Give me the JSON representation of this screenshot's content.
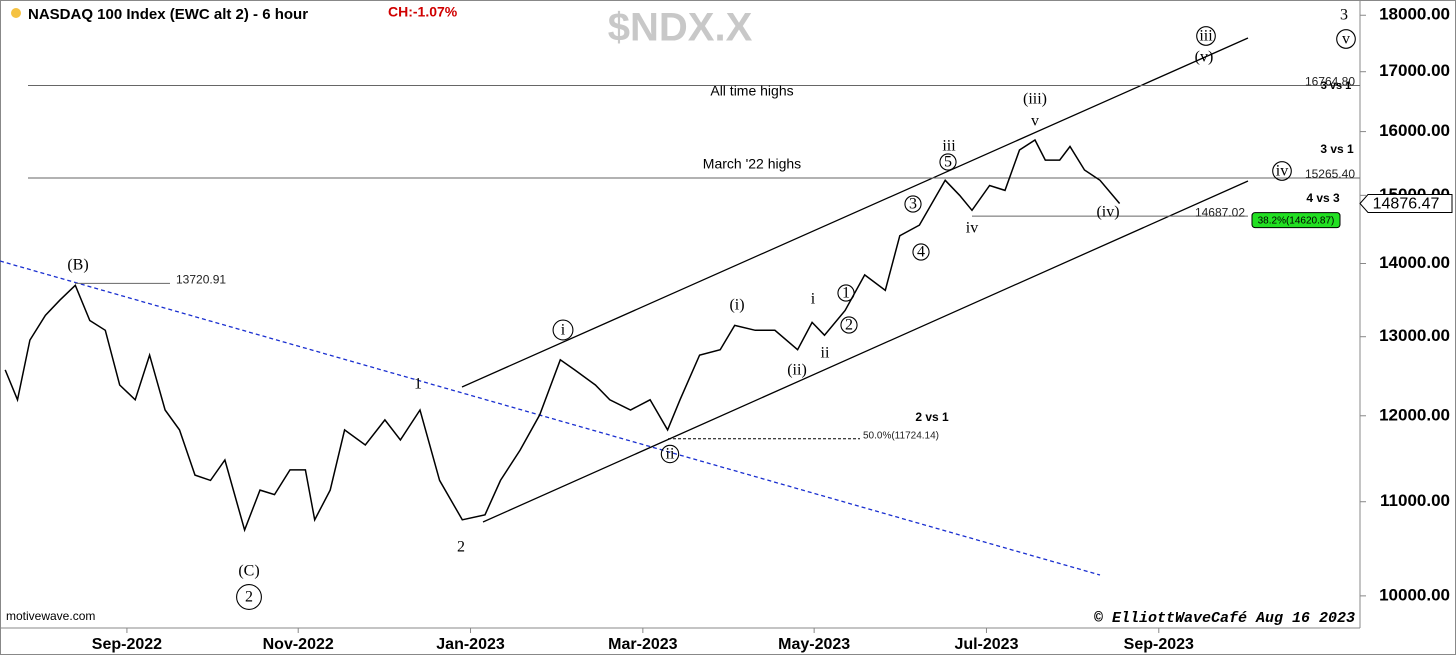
{
  "chart_data": {
    "type": "line",
    "title": "NASDAQ 100 Index (EWC alt 2) - 6 hour",
    "change_label": "CH:-1.07%",
    "watermark": "$NDX.X",
    "source": "motivewave.com",
    "credit": "© ElliottWaveCafé Aug 16 2023",
    "log_scale": true,
    "color": "#000000",
    "x": [
      2022.549,
      2022.561,
      2022.573,
      2022.588,
      2022.602,
      2022.617,
      2022.631,
      2022.646,
      2022.66,
      2022.675,
      2022.689,
      2022.704,
      2022.718,
      2022.733,
      2022.748,
      2022.762,
      2022.781,
      2022.796,
      2022.81,
      2022.825,
      2022.84,
      2022.849,
      2022.864,
      2022.878,
      2022.898,
      2022.917,
      2022.932,
      2022.951,
      2022.97,
      2022.992,
      2023.014,
      2023.029,
      2023.048,
      2023.067,
      2023.087,
      2023.101,
      2023.121,
      2023.135,
      2023.155,
      2023.174,
      2023.191,
      2023.203,
      2023.222,
      2023.242,
      2023.256,
      2023.276,
      2023.295,
      2023.317,
      2023.331,
      2023.343,
      2023.363,
      2023.382,
      2023.402,
      2023.416,
      2023.435,
      2023.46,
      2023.474,
      2023.486,
      2023.503,
      2023.518,
      2023.532,
      2023.547,
      2023.557,
      2023.571,
      2023.581,
      2023.595,
      2023.61,
      2023.629
    ],
    "values": [
      12570,
      12195,
      12955,
      13285,
      13490,
      13695,
      13215,
      13085,
      12380,
      12195,
      12760,
      12070,
      11830,
      11300,
      11240,
      11475,
      10690,
      11130,
      11080,
      11360,
      11360,
      10800,
      11130,
      11830,
      11650,
      11950,
      11710,
      12070,
      11240,
      10800,
      10855,
      11240,
      11590,
      12010,
      12700,
      12570,
      12380,
      12195,
      12070,
      12195,
      11830,
      12195,
      12760,
      12830,
      13150,
      13085,
      13085,
      12830,
      13190,
      13020,
      13350,
      13840,
      13625,
      14400,
      14555,
      15230,
      15000,
      14775,
      15150,
      15075,
      15705,
      15865,
      15545,
      15545,
      15760,
      15390,
      15230,
      14876.47
    ],
    "xlim": [
      2022.544,
      2023.862
    ],
    "xticks": [
      {
        "value": 2022.667,
        "label": "Sep-2022"
      },
      {
        "value": 2022.833,
        "label": "Nov-2022"
      },
      {
        "value": 2023.0,
        "label": "Jan-2023"
      },
      {
        "value": 2023.167,
        "label": "Mar-2023"
      },
      {
        "value": 2023.333,
        "label": "May-2023"
      },
      {
        "value": 2023.5,
        "label": "Jul-2023"
      },
      {
        "value": 2023.667,
        "label": "Sep-2023"
      }
    ],
    "ylim": [
      9680,
      18280
    ],
    "yticks": [
      {
        "value": 10000,
        "label": "10000.00"
      },
      {
        "value": 11000,
        "label": "11000.00"
      },
      {
        "value": 12000,
        "label": "12000.00"
      },
      {
        "value": 13000,
        "label": "13000.00"
      },
      {
        "value": 14000,
        "label": "14000.00"
      },
      {
        "value": 15000,
        "label": "15000.00"
      },
      {
        "value": 16000,
        "label": "16000.00"
      },
      {
        "value": 17000,
        "label": "17000.00"
      },
      {
        "value": 18000,
        "label": "18000.00"
      }
    ],
    "levels": [
      {
        "value": 16764.8,
        "label": "16764.80"
      },
      {
        "value": 15265.4,
        "label": "15265.40"
      },
      {
        "value": 14687.02,
        "label": "14687.02"
      },
      {
        "value": 13720.91,
        "label": "13720.91"
      },
      {
        "value": 11724.14,
        "label": "50.0%(11724.14)"
      },
      {
        "value": 14620.87,
        "label": "38.2%(14620.87)"
      }
    ],
    "annotations": [
      "All time highs",
      "March '22 highs",
      "2 vs 1",
      "3 vs 1",
      "4 vs 3",
      "3 vs 1"
    ],
    "wave_labels": [
      {
        "text": "(B)",
        "circled": false
      },
      {
        "text": "(C)",
        "circled": false
      },
      {
        "text": "2",
        "circled": true
      },
      {
        "text": "1",
        "circled": false
      },
      {
        "text": "2",
        "circled": false
      },
      {
        "text": "i",
        "circled": true
      },
      {
        "text": "ii",
        "circled": true
      },
      {
        "text": "(i)",
        "circled": false
      },
      {
        "text": "(ii)",
        "circled": false
      },
      {
        "text": "i",
        "circled": false
      },
      {
        "text": "ii",
        "circled": false
      },
      {
        "text": "1",
        "circled": true
      },
      {
        "text": "2",
        "circled": true
      },
      {
        "text": "3",
        "circled": true
      },
      {
        "text": "4",
        "circled": true
      },
      {
        "text": "iii",
        "circled": false
      },
      {
        "text": "5",
        "circled": true
      },
      {
        "text": "iv",
        "circled": false
      },
      {
        "text": "(iii)",
        "circled": false
      },
      {
        "text": "v",
        "circled": false
      },
      {
        "text": "(iv)",
        "circled": false
      },
      {
        "text": "iii",
        "circled": true
      },
      {
        "text": "(v)",
        "circled": false
      },
      {
        "text": "iv",
        "circled": true
      },
      {
        "text": "3",
        "circled": false
      },
      {
        "text": "v",
        "circled": true
      }
    ]
  }
}
